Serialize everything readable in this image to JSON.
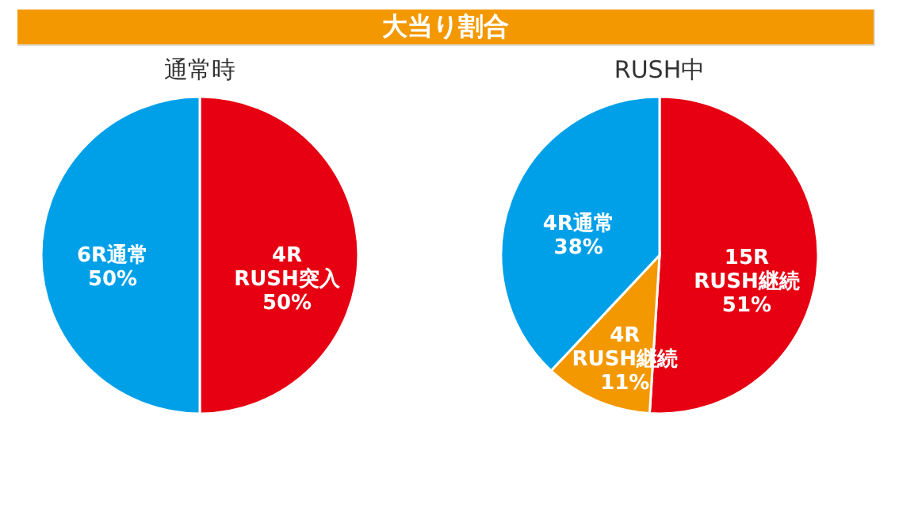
{
  "chart_data": [
    {
      "type": "pie",
      "title": "大当り割合",
      "subtitle": "通常時",
      "categories": [
        "4R\nRUSH突入",
        "6R通常"
      ],
      "values": [
        50,
        50
      ],
      "colors": [
        "#e60012",
        "#00a0e9"
      ],
      "value_labels": [
        "50%",
        "50%"
      ]
    },
    {
      "type": "pie",
      "subtitle": "RUSH中",
      "categories": [
        "15R\nRUSH継続",
        "4R\nRUSH継続",
        "4R通常"
      ],
      "values": [
        51,
        11,
        38
      ],
      "colors": [
        "#e60012",
        "#f39800",
        "#00a0e9"
      ],
      "value_labels": [
        "51%",
        "11%",
        "38%"
      ]
    }
  ]
}
